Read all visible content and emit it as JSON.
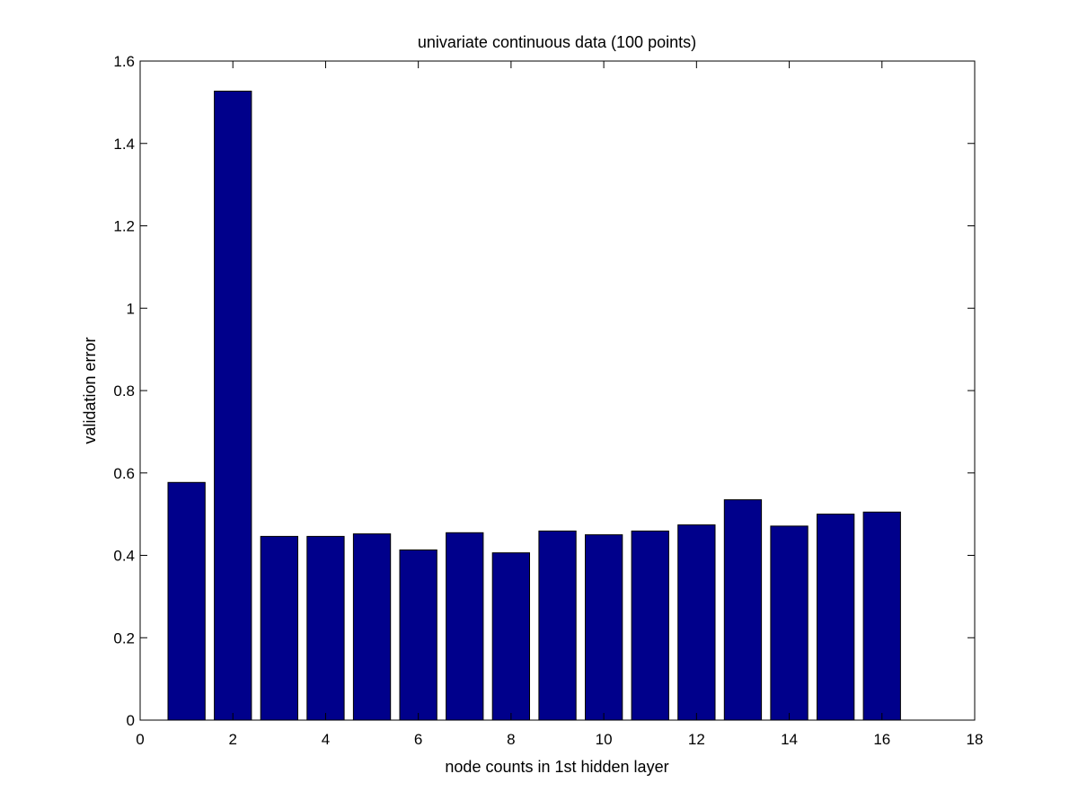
{
  "chart_data": {
    "type": "bar",
    "title": "univariate continuous data (100 points)",
    "xlabel": "node counts in 1st hidden layer",
    "ylabel": "validation error",
    "x": [
      1,
      2,
      3,
      4,
      5,
      6,
      7,
      8,
      9,
      10,
      11,
      12,
      13,
      14,
      15,
      16
    ],
    "values": [
      0.577,
      1.527,
      0.446,
      0.446,
      0.452,
      0.413,
      0.455,
      0.406,
      0.459,
      0.45,
      0.459,
      0.474,
      0.535,
      0.471,
      0.5,
      0.505
    ],
    "xlim": [
      0,
      18
    ],
    "ylim": [
      0,
      1.6
    ],
    "xticks": [
      "0",
      "2",
      "4",
      "6",
      "8",
      "10",
      "12",
      "14",
      "16",
      "18"
    ],
    "yticks": [
      "0",
      "0.2",
      "0.4",
      "0.6",
      "0.8",
      "1",
      "1.2",
      "1.4",
      "1.6"
    ],
    "grid": false,
    "bar_color": "#00008b"
  }
}
